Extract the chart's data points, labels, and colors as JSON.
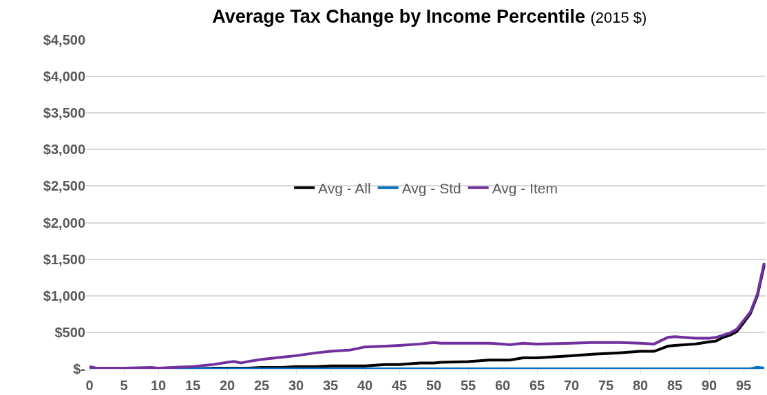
{
  "chart_data": {
    "type": "line",
    "title": "Average Tax Change by Income Percentile",
    "subtitle": "(2015 $)",
    "x": [
      0,
      1,
      5,
      9,
      10,
      12,
      15,
      18,
      20,
      21,
      22,
      23,
      25,
      28,
      30,
      33,
      35,
      38,
      40,
      43,
      45,
      48,
      50,
      51,
      55,
      58,
      60,
      61,
      63,
      65,
      70,
      73,
      75,
      77,
      80,
      82,
      84,
      85,
      88,
      90,
      91,
      92,
      93,
      94,
      95,
      96,
      97,
      98
    ],
    "series": [
      {
        "name": "Avg - All",
        "color": "#000000",
        "values": [
          null,
          null,
          null,
          null,
          null,
          0,
          0,
          10,
          10,
          10,
          10,
          10,
          20,
          20,
          30,
          30,
          40,
          40,
          40,
          60,
          60,
          80,
          80,
          90,
          100,
          120,
          120,
          120,
          150,
          150,
          180,
          200,
          210,
          220,
          240,
          240,
          310,
          320,
          340,
          370,
          380,
          430,
          460,
          510,
          630,
          760,
          1000,
          1420
        ]
      },
      {
        "name": "Avg - Std",
        "color": "#0070c0",
        "values": [
          0,
          0,
          0,
          0,
          0,
          0,
          0,
          0,
          0,
          0,
          0,
          0,
          0,
          0,
          0,
          0,
          0,
          0,
          0,
          0,
          0,
          0,
          0,
          0,
          0,
          0,
          0,
          0,
          0,
          0,
          0,
          0,
          0,
          0,
          0,
          0,
          0,
          0,
          0,
          0,
          0,
          0,
          0,
          0,
          0,
          0,
          20,
          10
        ]
      },
      {
        "name": "Avg - Item",
        "color": "#7030a0",
        "values": [
          30,
          10,
          10,
          20,
          10,
          20,
          30,
          60,
          90,
          100,
          80,
          100,
          130,
          160,
          180,
          220,
          240,
          260,
          300,
          310,
          320,
          340,
          360,
          350,
          350,
          350,
          340,
          330,
          350,
          340,
          350,
          360,
          360,
          360,
          350,
          340,
          430,
          440,
          420,
          420,
          430,
          460,
          490,
          540,
          660,
          780,
          1020,
          1450
        ]
      }
    ],
    "xlim": [
      -0.5,
      98.2
    ],
    "xticks": [
      0,
      5,
      10,
      15,
      20,
      25,
      30,
      35,
      40,
      45,
      50,
      55,
      60,
      65,
      70,
      75,
      80,
      85,
      90,
      95
    ],
    "ylim": [
      0,
      4500
    ],
    "yticks": [
      {
        "value": 0,
        "label": "$-"
      },
      {
        "value": 500,
        "label": "$500"
      },
      {
        "value": 1000,
        "label": "$1,000"
      },
      {
        "value": 1500,
        "label": "$1,500"
      },
      {
        "value": 2000,
        "label": "$2,000"
      },
      {
        "value": 2500,
        "label": "$2,500"
      },
      {
        "value": 3000,
        "label": "$3,000"
      },
      {
        "value": 3500,
        "label": "$3,500"
      },
      {
        "value": 4000,
        "label": "$4,000"
      },
      {
        "value": 4500,
        "label": "$4,500"
      }
    ],
    "grid": "y",
    "legend": "center",
    "marker": "none",
    "line_style": "solid"
  }
}
